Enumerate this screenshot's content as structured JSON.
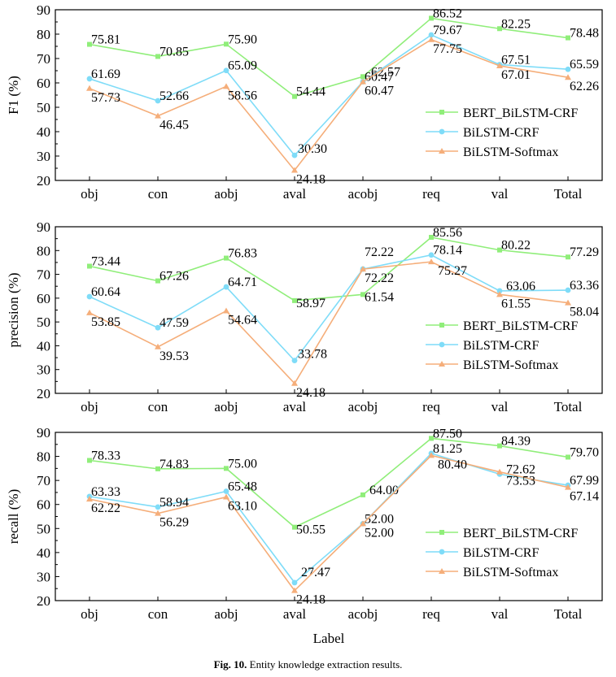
{
  "figure": {
    "caption_label": "Fig. 10.",
    "caption_text": "Entity knowledge extraction results.",
    "xlabel": "Label"
  },
  "styles": {
    "series_colors": [
      "#90ee7a",
      "#7fdcf8",
      "#f5ae7a"
    ],
    "series_markers": [
      "square",
      "circle",
      "triangle"
    ]
  },
  "chart_data": [
    {
      "type": "line",
      "ylabel": "F1 (%)",
      "categories": [
        "obj",
        "con",
        "aobj",
        "aval",
        "acobj",
        "req",
        "val",
        "Total"
      ],
      "ylim": [
        20,
        90
      ],
      "yticks": [
        20,
        30,
        40,
        50,
        60,
        70,
        80,
        90
      ],
      "legend_position": "lower-right",
      "series": [
        {
          "name": "BERT_BiLSTM-CRF",
          "values": [
            75.81,
            70.85,
            75.9,
            54.44,
            62.57,
            86.52,
            82.25,
            78.48
          ]
        },
        {
          "name": "BiLSTM-CRF",
          "values": [
            61.69,
            52.66,
            65.09,
            30.3,
            60.47,
            79.67,
            67.51,
            65.59
          ]
        },
        {
          "name": "BiLSTM-Softmax",
          "values": [
            57.73,
            46.45,
            58.56,
            24.18,
            60.47,
            77.75,
            67.01,
            62.26
          ]
        }
      ]
    },
    {
      "type": "line",
      "ylabel": "precision (%)",
      "categories": [
        "obj",
        "con",
        "aobj",
        "aval",
        "acobj",
        "req",
        "val",
        "Total"
      ],
      "ylim": [
        20,
        90
      ],
      "yticks": [
        20,
        30,
        40,
        50,
        60,
        70,
        80,
        90
      ],
      "legend_position": "lower-right",
      "series": [
        {
          "name": "BERT_BiLSTM-CRF",
          "values": [
            73.44,
            67.26,
            76.83,
            58.97,
            61.54,
            85.56,
            80.22,
            77.29
          ]
        },
        {
          "name": "BiLSTM-CRF",
          "values": [
            60.64,
            47.59,
            64.71,
            33.78,
            72.22,
            78.14,
            63.06,
            63.36
          ]
        },
        {
          "name": "BiLSTM-Softmax",
          "values": [
            53.85,
            39.53,
            54.64,
            24.18,
            72.22,
            75.27,
            61.55,
            58.04
          ]
        }
      ]
    },
    {
      "type": "line",
      "ylabel": "recall (%)",
      "categories": [
        "obj",
        "con",
        "aobj",
        "aval",
        "acobj",
        "req",
        "val",
        "Total"
      ],
      "ylim": [
        20,
        90
      ],
      "yticks": [
        20,
        30,
        40,
        50,
        60,
        70,
        80,
        90
      ],
      "legend_position": "lower-right",
      "series": [
        {
          "name": "BERT_BiLSTM-CRF",
          "values": [
            78.33,
            74.83,
            75.0,
            50.55,
            64.0,
            87.5,
            84.39,
            79.7
          ]
        },
        {
          "name": "BiLSTM-CRF",
          "values": [
            63.33,
            58.94,
            65.48,
            27.47,
            52.0,
            81.25,
            72.62,
            67.99
          ]
        },
        {
          "name": "BiLSTM-Softmax",
          "values": [
            62.22,
            56.29,
            63.1,
            24.18,
            52.0,
            80.4,
            73.53,
            67.14
          ]
        }
      ]
    }
  ]
}
